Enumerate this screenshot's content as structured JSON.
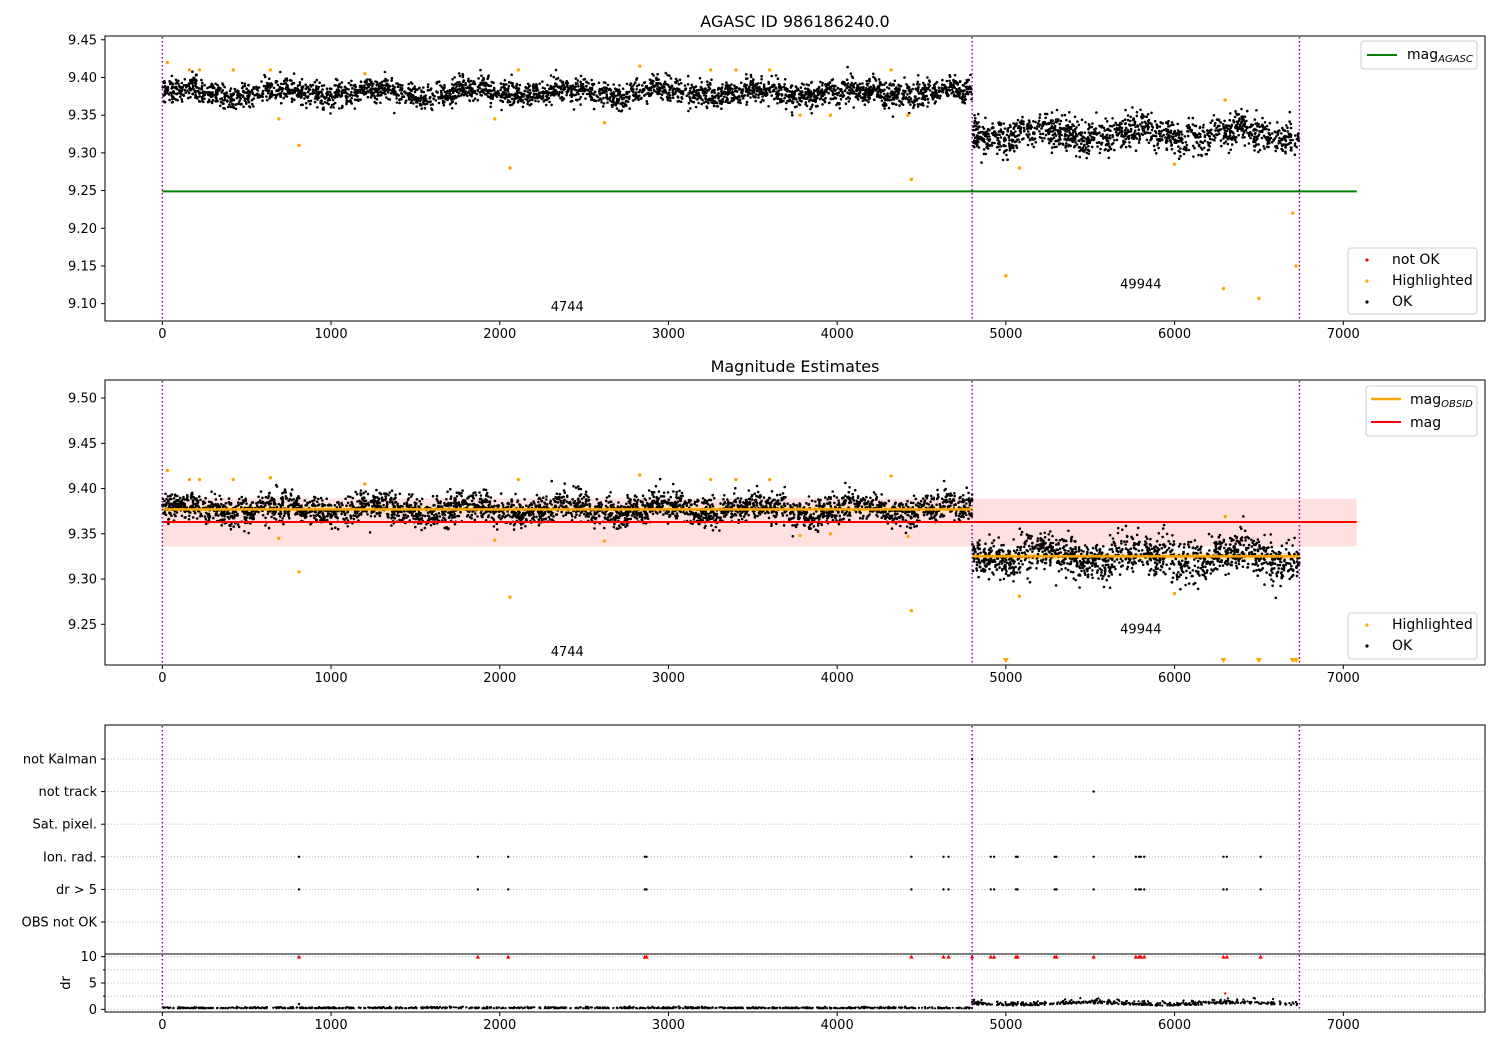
{
  "colors": {
    "ok": "#000000",
    "highlighted": "#ffa500",
    "not_ok": "#ff0000",
    "agasc_line": "#008000",
    "obsid_line": "#ffa500",
    "mag_line": "#ff0000",
    "band": "#ffcccc",
    "obsid_boundary": "#800080",
    "grid": "#b0b0b0"
  },
  "chart_data": [
    {
      "type": "scatter",
      "title": "AGASC ID 986186240.0",
      "xlim": [
        -340,
        7840
      ],
      "ylim": [
        9.077,
        9.455
      ],
      "x_ticks": [
        "0",
        "1000",
        "2000",
        "3000",
        "4000",
        "5000",
        "6000",
        "7000"
      ],
      "y_ticks": [
        "9.10",
        "9.15",
        "9.20",
        "9.25",
        "9.30",
        "9.35",
        "9.40",
        "9.45"
      ],
      "obsid_boundaries": [
        0,
        4800,
        6740
      ],
      "segments": [
        {
          "label": "4744",
          "x_start": 0,
          "x_end": 4800,
          "mean": 9.38,
          "scatter": 0.008,
          "label_x": 2400,
          "label_y": 9.09
        },
        {
          "label": "49944",
          "x_start": 4800,
          "x_end": 6740,
          "mean": 9.325,
          "scatter": 0.011,
          "label_x": 5800,
          "label_y": 9.12
        }
      ],
      "reference_line": {
        "name": "mag",
        "subscript": "AGASC",
        "value": 9.249,
        "x_start": 0,
        "x_end": 7080
      },
      "highlighted_points": [
        [
          30,
          9.42
        ],
        [
          160,
          9.41
        ],
        [
          220,
          9.41
        ],
        [
          420,
          9.41
        ],
        [
          640,
          9.41
        ],
        [
          690,
          9.345
        ],
        [
          810,
          9.31
        ],
        [
          1200,
          9.405
        ],
        [
          1970,
          9.345
        ],
        [
          2060,
          9.28
        ],
        [
          2110,
          9.41
        ],
        [
          2620,
          9.34
        ],
        [
          2830,
          9.415
        ],
        [
          3250,
          9.41
        ],
        [
          3400,
          9.41
        ],
        [
          3600,
          9.41
        ],
        [
          3780,
          9.35
        ],
        [
          3960,
          9.35
        ],
        [
          4320,
          9.41
        ],
        [
          4420,
          9.35
        ],
        [
          4440,
          9.265
        ],
        [
          5000,
          9.137
        ],
        [
          5080,
          9.28
        ],
        [
          6000,
          9.285
        ],
        [
          6290,
          9.12
        ],
        [
          6300,
          9.37
        ],
        [
          6500,
          9.107
        ],
        [
          6700,
          9.22
        ],
        [
          6720,
          9.15
        ]
      ],
      "legend_line": {
        "entries": [
          "mag"
        ],
        "placement": "top-right"
      },
      "legend_points": {
        "entries": [
          "not OK",
          "Highlighted",
          "OK"
        ],
        "placement": "bottom-right"
      }
    },
    {
      "type": "scatter",
      "title": "Magnitude Estimates",
      "xlim": [
        -340,
        7840
      ],
      "ylim": [
        9.205,
        9.52
      ],
      "x_ticks": [
        "0",
        "1000",
        "2000",
        "3000",
        "4000",
        "5000",
        "6000",
        "7000"
      ],
      "y_ticks": [
        "9.25",
        "9.30",
        "9.35",
        "9.40",
        "9.45",
        "9.50"
      ],
      "obsid_boundaries": [
        0,
        4800,
        6740
      ],
      "segments": [
        {
          "label": "4744",
          "x_start": 0,
          "x_end": 4800,
          "mean": 9.377,
          "obsid_mag": 9.377,
          "label_x": 2400,
          "label_y": 9.215
        },
        {
          "label": "49944",
          "x_start": 4800,
          "x_end": 6740,
          "mean": 9.325,
          "obsid_mag": 9.325,
          "label_x": 5800,
          "label_y": 9.24
        }
      ],
      "mag": {
        "value": 9.363,
        "band": [
          9.336,
          9.389
        ],
        "x_start": 0,
        "x_end": 7080
      },
      "highlighted_points": [
        [
          30,
          9.42
        ],
        [
          160,
          9.41
        ],
        [
          220,
          9.41
        ],
        [
          420,
          9.41
        ],
        [
          640,
          9.412
        ],
        [
          690,
          9.345
        ],
        [
          810,
          9.308
        ],
        [
          1200,
          9.405
        ],
        [
          1970,
          9.343
        ],
        [
          2060,
          9.28
        ],
        [
          2110,
          9.41
        ],
        [
          2620,
          9.342
        ],
        [
          2830,
          9.415
        ],
        [
          3250,
          9.41
        ],
        [
          3400,
          9.41
        ],
        [
          3600,
          9.41
        ],
        [
          3780,
          9.348
        ],
        [
          3960,
          9.35
        ],
        [
          4320,
          9.414
        ],
        [
          4420,
          9.347
        ],
        [
          4440,
          9.265
        ],
        [
          5080,
          9.281
        ],
        [
          6000,
          9.284
        ],
        [
          6300,
          9.369
        ]
      ],
      "off_scale_markers": [
        5000,
        6290,
        6500,
        6700,
        6720
      ],
      "legend_lines": {
        "entries": [
          "mag",
          "mag"
        ],
        "placement": "top-right"
      },
      "legend_points": {
        "entries": [
          "Highlighted",
          "OK"
        ],
        "placement": "bottom-right"
      }
    },
    {
      "type": "scatter",
      "xlim": [
        -340,
        7840
      ],
      "x_ticks": [
        "0",
        "1000",
        "2000",
        "3000",
        "4000",
        "5000",
        "6000",
        "7000"
      ],
      "obsid_boundaries": [
        0,
        4800,
        6740
      ],
      "flag_rows": [
        "not Kalman",
        "not track",
        "Sat. pixel.",
        "Ion. rad.",
        "dr > 5",
        "OBS not OK"
      ],
      "flags": {
        "not Kalman": [
          4800
        ],
        "not track": [
          5520
        ],
        "Sat. pixel.": [],
        "Ion. rad.": [
          810,
          1870,
          2050,
          2860,
          2870,
          4440,
          4630,
          4660,
          4910,
          4930,
          5060,
          5070,
          5290,
          5300,
          5520,
          5770,
          5790,
          5800,
          5820,
          6290,
          6310,
          6510
        ],
        "dr > 5": [
          810,
          1870,
          2050,
          2860,
          2870,
          4440,
          4630,
          4660,
          4910,
          4930,
          5060,
          5070,
          5290,
          5300,
          5520,
          5770,
          5790,
          5800,
          5820,
          6290,
          6310,
          6510
        ],
        "OBS not OK": []
      },
      "dr_panel": {
        "ylabel": "dr",
        "y_ticks": [
          "0",
          "5",
          "10"
        ],
        "ylim": [
          -0.5,
          10.5
        ],
        "clipped_x": [
          810,
          1870,
          2050,
          2860,
          2870,
          4440,
          4630,
          4660,
          4800,
          4910,
          4930,
          5060,
          5070,
          5290,
          5300,
          5520,
          5770,
          5790,
          5800,
          5820,
          6290,
          6310,
          6510
        ],
        "outliers": [
          [
            810,
            1.0
          ],
          [
            6300,
            3.0
          ]
        ],
        "segments": [
          {
            "x_start": 0,
            "x_end": 4800,
            "mean": 0.2
          },
          {
            "x_start": 4800,
            "x_end": 6740,
            "mean": 0.9
          }
        ]
      }
    }
  ]
}
